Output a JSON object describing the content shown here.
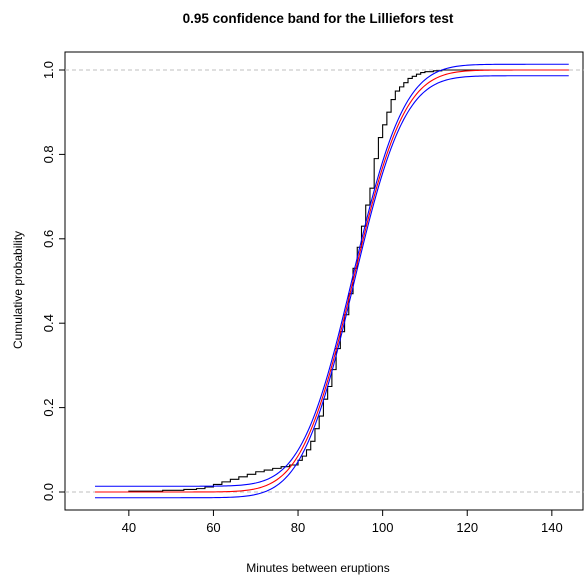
{
  "chart_data": {
    "type": "line",
    "title": "0.95 confidence band for the Lilliefors test",
    "xlabel": "Minutes between eruptions",
    "ylabel": "Cumulative probability",
    "xlim": [
      32,
      144
    ],
    "ylim": [
      0,
      1
    ],
    "xticks": [
      40,
      60,
      80,
      100,
      120,
      140
    ],
    "yticks": [
      0.0,
      0.2,
      0.4,
      0.6,
      0.8,
      1.0
    ],
    "ytick_labels": [
      "0.0",
      "0.2",
      "0.4",
      "0.6",
      "0.8",
      "1.0"
    ],
    "reference_lines": [
      0,
      1
    ],
    "normal_fit": {
      "mean": 93,
      "sd": 9.5
    },
    "band_halfwidth": 0.0136,
    "colors": {
      "ecdf": "#000000",
      "fitted": "#ff0000",
      "band": "#0000ff",
      "reference": "#bfbfbf"
    },
    "series": [
      {
        "type": "step",
        "x": [
          32,
          40,
          48,
          53,
          56,
          58,
          60,
          62,
          64,
          66,
          68,
          70,
          72,
          74,
          76,
          78,
          80,
          81,
          82,
          83,
          84,
          85,
          86,
          87,
          88,
          89,
          90,
          91,
          92,
          93,
          94,
          95,
          96,
          97,
          98,
          99,
          100,
          101,
          102,
          103,
          104,
          105,
          106,
          107,
          108,
          109,
          110,
          112,
          114,
          116,
          120,
          144
        ],
        "values": [
          0.0,
          0.002,
          0.004,
          0.006,
          0.008,
          0.012,
          0.018,
          0.024,
          0.03,
          0.036,
          0.042,
          0.048,
          0.052,
          0.056,
          0.06,
          0.064,
          0.075,
          0.085,
          0.1,
          0.12,
          0.15,
          0.18,
          0.22,
          0.25,
          0.29,
          0.34,
          0.38,
          0.42,
          0.47,
          0.53,
          0.58,
          0.63,
          0.68,
          0.72,
          0.79,
          0.84,
          0.87,
          0.9,
          0.93,
          0.95,
          0.96,
          0.97,
          0.98,
          0.985,
          0.99,
          0.994,
          0.996,
          0.998,
          1.0,
          1.0,
          1.0,
          1.0
        ]
      }
    ]
  }
}
